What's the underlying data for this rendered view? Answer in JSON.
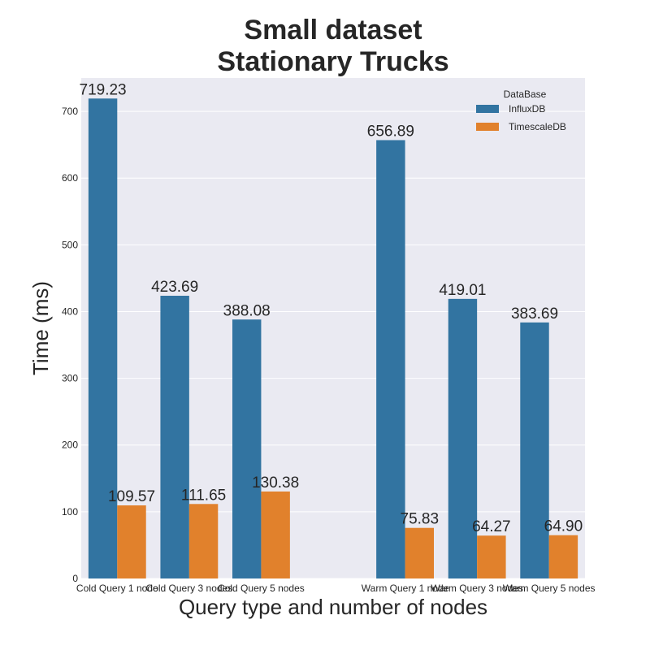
{
  "chart_data": {
    "type": "bar",
    "title_lines": [
      "Small dataset",
      "Stationary Trucks"
    ],
    "xlabel": "Query type and number of nodes",
    "ylabel": "Time (ms)",
    "ylim": [
      0,
      750
    ],
    "yticks": [
      0,
      100,
      200,
      300,
      400,
      500,
      600,
      700
    ],
    "grid": true,
    "legend_title": "DataBase",
    "legend_position": "top-right",
    "categories": [
      "Cold Query 1 node",
      "Cold Query 3 nodes",
      "Cold Query 5 nodes",
      "",
      "Warm Query 1 node",
      "Warm Query 3 nodes",
      "Warm Query 5 nodes"
    ],
    "series": [
      {
        "name": "InfluxDB",
        "color": "#3274a1",
        "values": [
          719.23,
          423.69,
          388.08,
          null,
          656.89,
          419.01,
          383.69
        ],
        "labels": [
          "719.23",
          "423.69",
          "388.08",
          "",
          "656.89",
          "419.01",
          "383.69"
        ]
      },
      {
        "name": "TimescaleDB",
        "color": "#e1812c",
        "values": [
          109.57,
          111.65,
          130.38,
          null,
          75.83,
          64.27,
          64.9
        ],
        "labels": [
          "109.57",
          "111.65",
          "130.38",
          "",
          "75.83",
          "64.27",
          "64.90"
        ]
      }
    ],
    "colors": {
      "plot_background": "#eaeaf2",
      "grid": "#ffffff",
      "text": "#262626"
    }
  }
}
